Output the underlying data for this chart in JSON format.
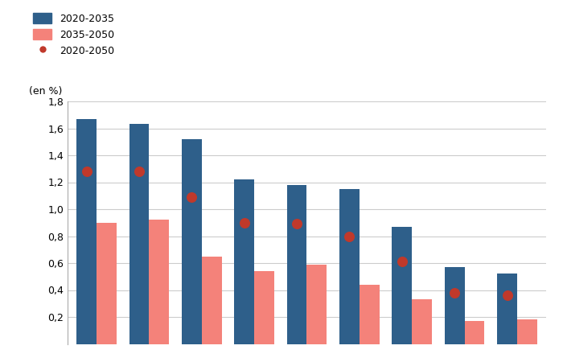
{
  "blue_values": [
    1.67,
    1.63,
    1.52,
    1.22,
    1.18,
    1.15,
    0.87,
    0.57,
    0.52
  ],
  "pink_values": [
    0.9,
    0.92,
    0.65,
    0.54,
    0.59,
    0.44,
    0.33,
    0.17,
    0.18
  ],
  "dot_values": [
    1.28,
    1.28,
    1.09,
    0.9,
    0.89,
    0.8,
    0.61,
    0.38,
    0.36
  ],
  "blue_color": "#2e5f8a",
  "pink_color": "#f4827a",
  "dot_color": "#c0392b",
  "en_pct_label": "(en %)",
  "ylim": [
    0,
    1.8
  ],
  "yticks": [
    0.2,
    0.4,
    0.6,
    0.8,
    1.0,
    1.2,
    1.4,
    1.6,
    1.8
  ],
  "ytick_labels": [
    "0,2",
    "0,4",
    "0,6",
    "0,8",
    "1,0",
    "1,2",
    "1,4",
    "1,6",
    "1,8"
  ],
  "legend_labels": [
    "2020-2035",
    "2035-2050",
    "2020-2050"
  ],
  "bar_width": 0.38,
  "figsize": [
    7.0,
    4.5
  ],
  "dpi": 100,
  "background_color": "#ffffff",
  "grid_color": "#cccccc"
}
